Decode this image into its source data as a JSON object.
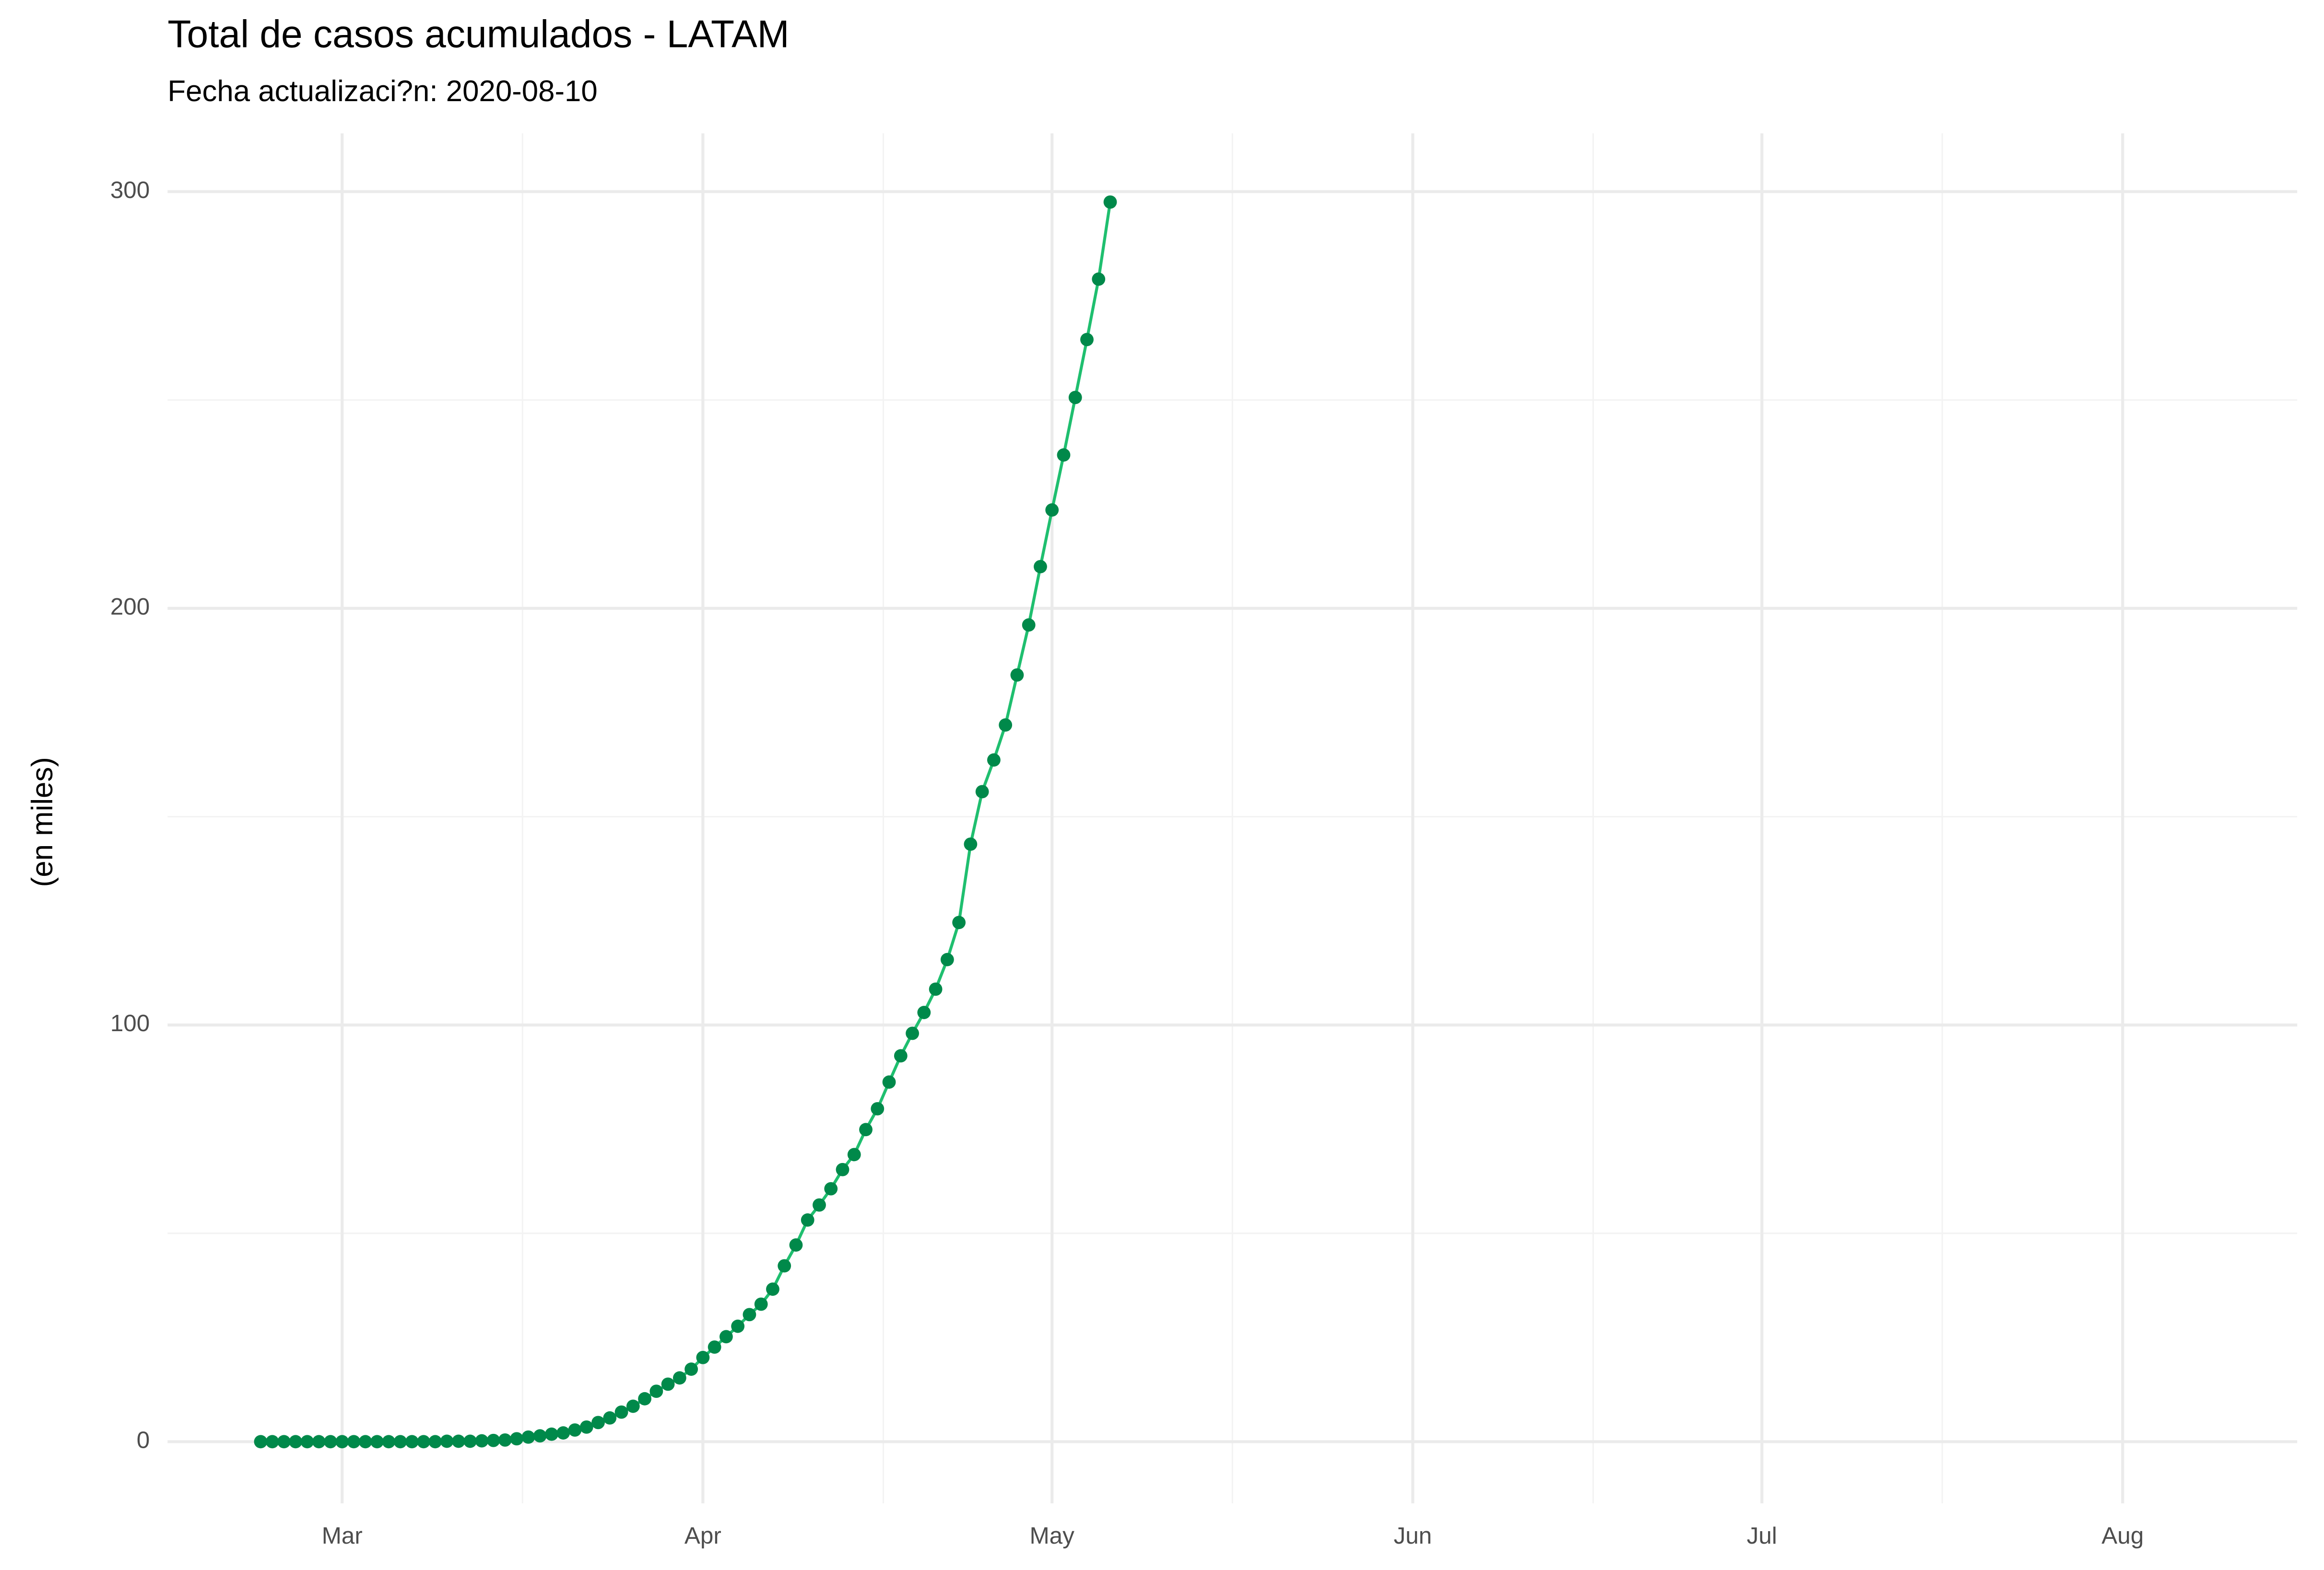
{
  "chart_data": {
    "type": "line",
    "title": "Total de casos acumulados - LATAM",
    "subtitle": "Fecha actualizaci?n: 2020-08-10",
    "y_label": "(en miles)",
    "x": [
      "2020-02-23",
      "2020-02-24",
      "2020-02-25",
      "2020-02-26",
      "2020-02-27",
      "2020-02-28",
      "2020-02-29",
      "2020-03-01",
      "2020-03-02",
      "2020-03-03",
      "2020-03-04",
      "2020-03-05",
      "2020-03-06",
      "2020-03-07",
      "2020-03-08",
      "2020-03-09",
      "2020-03-10",
      "2020-03-11",
      "2020-03-12",
      "2020-03-13",
      "2020-03-14",
      "2020-03-15",
      "2020-03-16",
      "2020-03-17",
      "2020-03-18",
      "2020-03-19",
      "2020-03-20",
      "2020-03-21",
      "2020-03-22",
      "2020-03-23",
      "2020-03-24",
      "2020-03-25",
      "2020-03-26",
      "2020-03-27",
      "2020-03-28",
      "2020-03-29",
      "2020-03-30",
      "2020-03-31",
      "2020-04-01",
      "2020-04-02",
      "2020-04-03",
      "2020-04-04",
      "2020-04-05",
      "2020-04-06",
      "2020-04-07",
      "2020-04-08",
      "2020-04-09",
      "2020-04-10",
      "2020-04-11",
      "2020-04-12",
      "2020-04-13",
      "2020-04-14",
      "2020-04-15",
      "2020-04-16",
      "2020-04-17",
      "2020-04-18",
      "2020-04-19",
      "2020-04-20",
      "2020-04-21",
      "2020-04-22",
      "2020-04-23",
      "2020-04-24",
      "2020-04-25",
      "2020-04-26",
      "2020-04-27",
      "2020-04-28",
      "2020-04-29",
      "2020-04-30",
      "2020-05-01",
      "2020-05-02",
      "2020-05-03",
      "2020-05-04",
      "2020-05-05",
      "2020-05-06"
    ],
    "values": [
      0,
      0,
      0,
      0,
      0,
      0,
      0,
      0,
      0,
      0,
      0,
      0,
      0,
      0,
      0,
      0,
      0.1,
      0.1,
      0.1,
      0.2,
      0.3,
      0.4,
      0.7,
      1.1,
      1.4,
      1.8,
      2.1,
      2.8,
      3.5,
      4.6,
      5.7,
      7.1,
      8.5,
      10.3,
      12.1,
      13.8,
      15.3,
      17.4,
      20.2,
      22.7,
      25.2,
      27.7,
      30.5,
      33,
      36.6,
      42.2,
      47.2,
      53.2,
      56.8,
      60.7,
      65.3,
      68.9,
      74.9,
      79.9,
      86.3,
      92.6,
      98,
      103,
      108.6,
      115.7,
      124.6,
      143.4,
      156,
      163.6,
      172,
      184,
      196,
      210,
      223.6,
      236.8,
      250.6,
      264.5,
      279,
      297.5
    ],
    "color": "#1fbf6f",
    "point_color": "#00894a",
    "xlim": [
      "2020-02-15",
      "2020-08-16"
    ],
    "xticks": [
      {
        "value": "2020-03-01",
        "label": "Mar"
      },
      {
        "value": "2020-04-01",
        "label": "Apr"
      },
      {
        "value": "2020-05-01",
        "label": "May"
      },
      {
        "value": "2020-06-01",
        "label": "Jun"
      },
      {
        "value": "2020-07-01",
        "label": "Jul"
      },
      {
        "value": "2020-08-01",
        "label": "Aug"
      }
    ],
    "ylim": [
      -14.8,
      314
    ],
    "yticks": [
      0,
      100,
      200,
      300
    ],
    "grid": true
  }
}
